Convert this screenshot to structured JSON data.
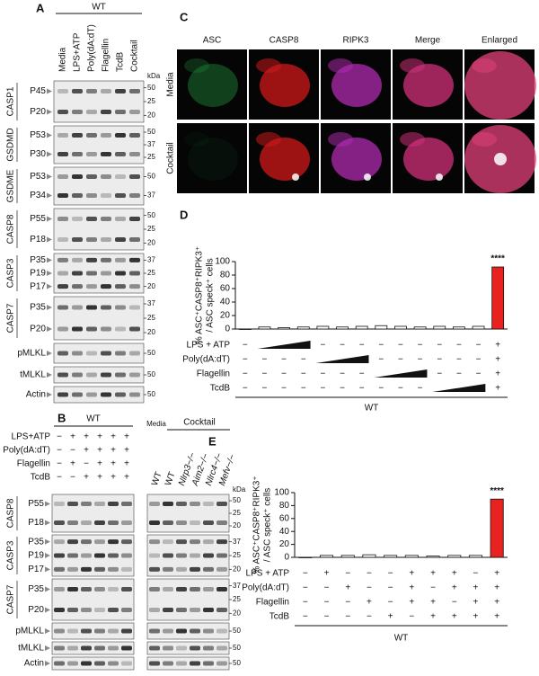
{
  "panel_a": {
    "label": "A",
    "group": "WT",
    "unit": "kDa",
    "lanes": [
      "Media",
      "LPS+ATP",
      "Poly(dA:dT)",
      "Flagellin",
      "TcdB",
      "Cocktail"
    ],
    "blots": [
      {
        "protein": "CASP1",
        "bands": [
          "P45",
          "P20"
        ],
        "markers": [
          50,
          25,
          20
        ]
      },
      {
        "protein": "GSDMD",
        "bands": [
          "P53",
          "P30"
        ],
        "markers": [
          50,
          37,
          25
        ]
      },
      {
        "protein": "GSDME",
        "bands": [
          "P53",
          "P34"
        ],
        "markers": [
          50,
          37
        ]
      },
      {
        "protein": "CASP8",
        "bands": [
          "P55",
          "P18"
        ],
        "markers": [
          50,
          25,
          20
        ]
      },
      {
        "protein": "CASP3",
        "bands": [
          "P35",
          "P19",
          "P17"
        ],
        "markers": [
          37,
          25,
          20
        ]
      },
      {
        "protein": "CASP7",
        "bands": [
          "P35",
          "P20"
        ],
        "markers": [
          37,
          25,
          20
        ]
      },
      {
        "protein": "pMLKL",
        "markers": [
          50
        ]
      },
      {
        "protein": "tMLKL",
        "markers": [
          50
        ]
      },
      {
        "protein": "Actin",
        "markers": [
          50
        ]
      }
    ]
  },
  "panel_b": {
    "label": "B",
    "group": "WT",
    "unit": "kDa",
    "treatments": [
      {
        "name": "LPS+ATP",
        "signs": [
          "−",
          "+",
          "+",
          "+",
          "+",
          "+"
        ]
      },
      {
        "name": "Poly(dA:dT)",
        "signs": [
          "−",
          "−",
          "+",
          "+",
          "+",
          "+"
        ]
      },
      {
        "name": "Flagellin",
        "signs": [
          "−",
          "+",
          "−",
          "+",
          "+",
          "+"
        ]
      },
      {
        "name": "TcdB",
        "signs": [
          "−",
          "−",
          "+",
          "+",
          "+",
          "+"
        ]
      }
    ],
    "media_label": "Media",
    "cocktail_label": "Cocktail",
    "genotypes": [
      "WT",
      "WT",
      "Nlrp3−/−",
      "Aim2−/−",
      "Nlrc4−/−",
      "Mefv−/−"
    ],
    "blots": [
      {
        "protein": "CASP8",
        "bands": [
          "P55",
          "P18"
        ],
        "markers": [
          50,
          25,
          20
        ]
      },
      {
        "protein": "CASP3",
        "bands": [
          "P35",
          "P19",
          "P17"
        ],
        "markers": [
          37,
          25,
          20
        ]
      },
      {
        "protein": "CASP7",
        "bands": [
          "P35",
          "P20"
        ],
        "markers": [
          37,
          25,
          20
        ]
      },
      {
        "protein": "pMLKL",
        "markers": [
          50
        ]
      },
      {
        "protein": "tMLKL",
        "markers": [
          50
        ]
      },
      {
        "protein": "Actin",
        "markers": [
          50
        ]
      }
    ]
  },
  "panel_c": {
    "label": "C",
    "columns": [
      {
        "name": "ASC",
        "color": "#1e9e3e"
      },
      {
        "name": "CASP8",
        "color": "#e01818"
      },
      {
        "name": "RIPK3",
        "color": "#c030c0"
      },
      {
        "name": "Merge",
        "color": "#000000"
      },
      {
        "name": "Enlarged",
        "color": "#000000"
      }
    ],
    "rows": [
      "Media",
      "Cocktail"
    ]
  },
  "chart_data": [
    {
      "label": "D",
      "type": "bar",
      "ylabel": [
        "% ASC⁺CASP8⁺RIPK3⁺",
        "/ ASC speck⁺ cells"
      ],
      "ylim": [
        0,
        100
      ],
      "yticks": [
        0,
        20,
        40,
        60,
        80,
        100
      ],
      "values": [
        0,
        3,
        2,
        3,
        4,
        3,
        4,
        5,
        4,
        3,
        4,
        3,
        4,
        92
      ],
      "colors": [
        "#ffffff",
        "#ffffff",
        "#ffffff",
        "#ffffff",
        "#ffffff",
        "#ffffff",
        "#ffffff",
        "#ffffff",
        "#ffffff",
        "#ffffff",
        "#ffffff",
        "#ffffff",
        "#ffffff",
        "#e8231f"
      ],
      "annotations": [
        null,
        null,
        null,
        null,
        null,
        null,
        null,
        null,
        null,
        null,
        null,
        null,
        null,
        "****"
      ],
      "conditions": [
        {
          "name": "LPS + ATP",
          "signs": [
            "−",
            null,
            null,
            null,
            "−",
            "−",
            "−",
            "−",
            "−",
            "−",
            "−",
            "−",
            "−",
            "+"
          ]
        },
        {
          "name": "Poly(dA:dT)",
          "signs": [
            "−",
            "−",
            "−",
            "−",
            null,
            null,
            null,
            "−",
            "−",
            "−",
            "−",
            "−",
            "−",
            "+"
          ]
        },
        {
          "name": "Flagellin",
          "signs": [
            "−",
            "−",
            "−",
            "−",
            "−",
            "−",
            "−",
            null,
            null,
            null,
            "−",
            "−",
            "−",
            "+"
          ]
        },
        {
          "name": "TcdB",
          "signs": [
            "−",
            "−",
            "−",
            "−",
            "−",
            "−",
            "−",
            "−",
            "−",
            "−",
            null,
            null,
            null,
            "+"
          ]
        }
      ],
      "genotype": "WT"
    },
    {
      "label": "E",
      "type": "bar",
      "ylabel": [
        "% ASC⁺CASP8⁺RIPK3⁺",
        "/ ASC speck⁺ cells"
      ],
      "ylim": [
        0,
        100
      ],
      "yticks": [
        0,
        20,
        40,
        60,
        80,
        100
      ],
      "values": [
        0,
        3,
        3,
        4,
        3,
        3,
        2,
        3,
        3,
        90
      ],
      "colors": [
        "#ffffff",
        "#ffffff",
        "#ffffff",
        "#ffffff",
        "#ffffff",
        "#ffffff",
        "#ffffff",
        "#ffffff",
        "#ffffff",
        "#e8231f"
      ],
      "annotations": [
        null,
        null,
        null,
        null,
        null,
        null,
        null,
        null,
        null,
        "****"
      ],
      "conditions": [
        {
          "name": "LPS + ATP",
          "signs": [
            "−",
            "+",
            "−",
            "−",
            "−",
            "+",
            "+",
            "+",
            "−",
            "+"
          ]
        },
        {
          "name": "Poly(dA:dT)",
          "signs": [
            "−",
            "−",
            "+",
            "−",
            "−",
            "+",
            "−",
            "+",
            "+",
            "+"
          ]
        },
        {
          "name": "Flagellin",
          "signs": [
            "−",
            "−",
            "−",
            "+",
            "−",
            "+",
            "+",
            "−",
            "+",
            "+"
          ]
        },
        {
          "name": "TcdB",
          "signs": [
            "−",
            "−",
            "−",
            "−",
            "+",
            "−",
            "+",
            "+",
            "+",
            "+"
          ]
        }
      ],
      "genotype": "WT"
    }
  ]
}
